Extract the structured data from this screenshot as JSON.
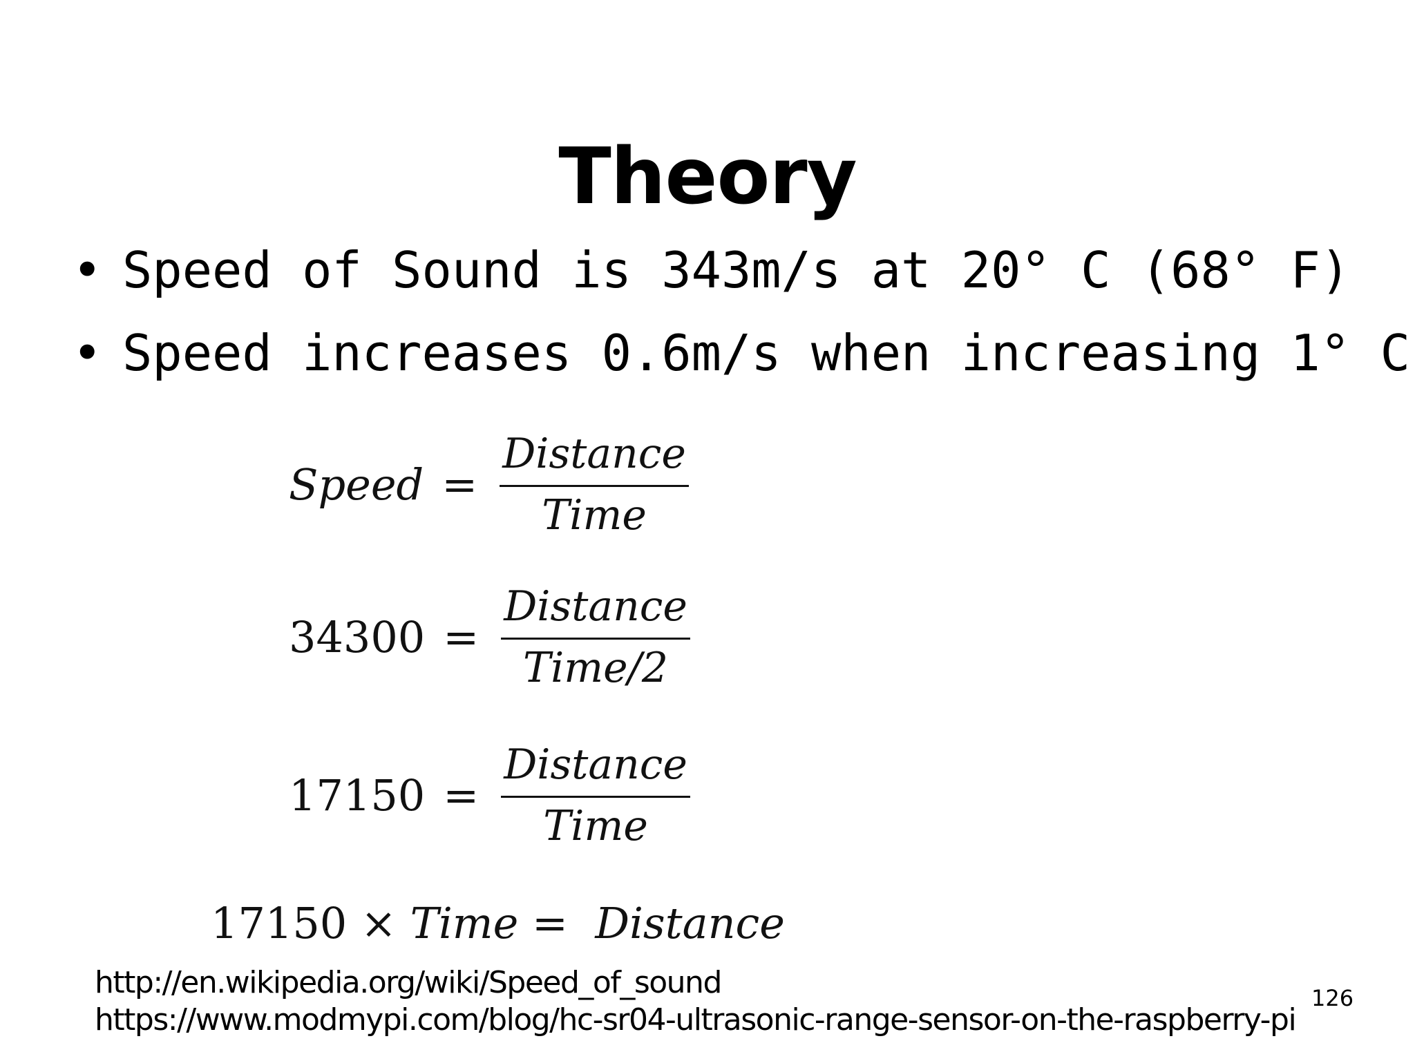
{
  "slide": {
    "title": "Theory",
    "bullets": [
      "Speed of Sound is 343m/s at 20° C (68° F)",
      "Speed increases 0.6m/s when increasing 1° C"
    ],
    "bullet_symbol": "•",
    "equations": [
      {
        "lhs": "Speed",
        "equals": "=",
        "numerator": "Distance",
        "denominator": "Time"
      },
      {
        "lhs": "34300",
        "equals": "=",
        "numerator": "Distance",
        "denominator": "Time/2"
      },
      {
        "lhs": "17150",
        "equals": "=",
        "numerator": "Distance",
        "denominator": "Time"
      }
    ],
    "final_equation": {
      "factor": "17150",
      "times": "×",
      "variable": "Time",
      "equals": "=",
      "result": "Distance"
    },
    "sources": [
      "http://en.wikipedia.org/wiki/Speed_of_sound",
      "https://www.modmypi.com/blog/hc-sr04-ultrasonic-range-sensor-on-the-raspberry-pi"
    ],
    "page_number": "126"
  }
}
